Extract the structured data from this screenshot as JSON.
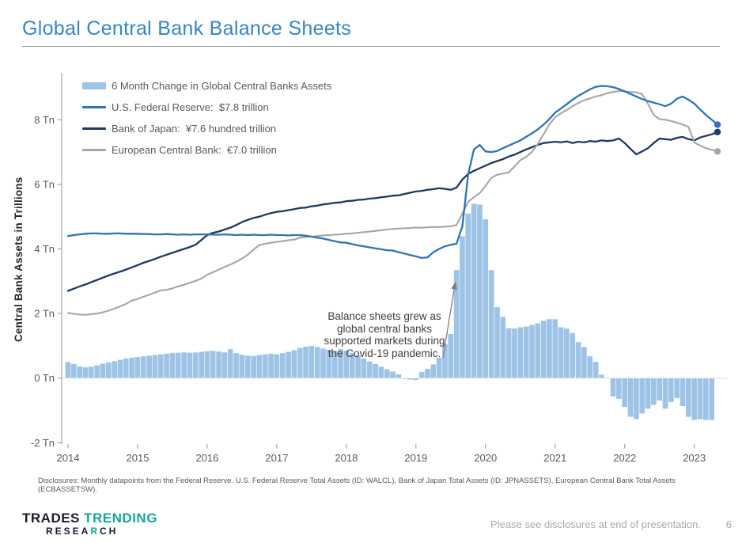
{
  "page": {
    "title": "Global Central Bank Balance Sheets",
    "footer_note": "Please see disclosures at end of presentation.",
    "page_number": "6",
    "disclosure": "Disclosures: Monthly datapoints from the Federal Reserve.  U.S. Federal Reserve Total Assets (ID: WALCL), Bank of Japan Total Assets (ID: JPNASSETS), European Central Bank Total Assets (ECBASSETSW)."
  },
  "logo": {
    "word1": "TRADES",
    "word2": "TRENDING",
    "line2_pre": "RESEA",
    "line2_accent": "R",
    "line2_post": "CH",
    "teal": "#14A79A",
    "dark": "#191C30"
  },
  "legend": [
    {
      "label": "6 Month Change in Global Central Banks Assets",
      "color": "#9DC3E6",
      "type": "bar"
    },
    {
      "label": "U.S. Federal Reserve:  $7.8 trillion",
      "color": "#2E74B5",
      "type": "line"
    },
    {
      "label": "Bank of Japan:  ¥7.6 hundred trillion",
      "color": "#1F3864",
      "type": "line"
    },
    {
      "label": "European Central Bank:  €7.0 trillion",
      "color": "#A6A6A6",
      "type": "line"
    }
  ],
  "annotation": {
    "lines": [
      "Balance sheets grew as",
      "global central banks",
      "supported markets during",
      "the Covid-19 pandemic."
    ]
  },
  "chart_data": {
    "type": "combo (monthly bars + 3 lines)",
    "ylabel": "Central Bank Assets in Trillions",
    "x_start_year": 2014,
    "points_per_year": 12,
    "x_tick_labels": [
      "2014",
      "2015",
      "2016",
      "2017",
      "2018",
      "2019",
      "2020",
      "2021",
      "2022",
      "2023"
    ],
    "y_ticks": [
      {
        "value": 8,
        "label": "8 Tn"
      },
      {
        "value": 6,
        "label": "6 Tn"
      },
      {
        "value": 4,
        "label": "4 Tn"
      },
      {
        "value": 2,
        "label": "2 Tn"
      },
      {
        "value": 0,
        "label": "0 Tn"
      },
      {
        "value": -2,
        "label": "-2 Tn"
      }
    ],
    "ylim": [
      -2.4,
      9.4
    ],
    "grid": "off",
    "legend_position": "top-left inside plot",
    "bars": {
      "name": "6 Month Change in Global Central Banks Assets",
      "color": "#9DC3E6",
      "values": [
        0.5,
        0.44,
        0.37,
        0.34,
        0.36,
        0.4,
        0.45,
        0.49,
        0.53,
        0.57,
        0.61,
        0.64,
        0.66,
        0.68,
        0.7,
        0.72,
        0.74,
        0.76,
        0.78,
        0.79,
        0.8,
        0.79,
        0.8,
        0.82,
        0.84,
        0.85,
        0.83,
        0.8,
        0.9,
        0.78,
        0.73,
        0.7,
        0.69,
        0.72,
        0.74,
        0.76,
        0.74,
        0.78,
        0.82,
        0.87,
        0.94,
        0.98,
        1.0,
        0.97,
        0.92,
        0.88,
        0.84,
        0.9,
        0.86,
        0.78,
        0.7,
        0.61,
        0.52,
        0.44,
        0.36,
        0.28,
        0.21,
        0.12,
        -0.03,
        -0.05,
        -0.06,
        0.19,
        0.29,
        0.43,
        0.64,
        1.05,
        1.37,
        3.35,
        4.4,
        5.1,
        5.4,
        5.38,
        4.92,
        3.35,
        2.2,
        1.9,
        1.55,
        1.54,
        1.58,
        1.6,
        1.65,
        1.7,
        1.78,
        1.83,
        1.83,
        1.58,
        1.54,
        1.4,
        1.12,
        0.97,
        0.68,
        0.51,
        0.11,
        0.02,
        -0.57,
        -0.65,
        -0.9,
        -1.2,
        -1.27,
        -1.1,
        -0.95,
        -0.83,
        -0.7,
        -0.95,
        -0.75,
        -0.62,
        -0.87,
        -1.2,
        -1.3,
        -1.28,
        -1.3,
        -1.3
      ]
    },
    "series": [
      {
        "name": "U.S. Federal Reserve",
        "end_label": "$7.8 trillion",
        "color": "#2E74B5",
        "width": 2.3,
        "values": [
          4.4,
          4.43,
          4.45,
          4.47,
          4.48,
          4.48,
          4.47,
          4.47,
          4.48,
          4.48,
          4.47,
          4.47,
          4.47,
          4.46,
          4.46,
          4.45,
          4.45,
          4.46,
          4.45,
          4.44,
          4.45,
          4.44,
          4.45,
          4.45,
          4.45,
          4.44,
          4.44,
          4.45,
          4.44,
          4.43,
          4.44,
          4.43,
          4.44,
          4.43,
          4.43,
          4.44,
          4.43,
          4.43,
          4.42,
          4.43,
          4.43,
          4.41,
          4.38,
          4.35,
          4.32,
          4.28,
          4.24,
          4.2,
          4.19,
          4.15,
          4.11,
          4.08,
          4.05,
          4.02,
          3.99,
          3.96,
          3.95,
          3.9,
          3.86,
          3.81,
          3.77,
          3.72,
          3.74,
          3.9,
          4.0,
          4.08,
          4.13,
          4.16,
          4.7,
          6.3,
          7.08,
          7.22,
          7.02,
          7.0,
          7.03,
          7.12,
          7.2,
          7.28,
          7.36,
          7.47,
          7.58,
          7.7,
          7.85,
          8.02,
          8.22,
          8.35,
          8.48,
          8.62,
          8.74,
          8.84,
          8.94,
          9.02,
          9.05,
          9.04,
          9.01,
          8.95,
          8.88,
          8.8,
          8.72,
          8.64,
          8.58,
          8.53,
          8.48,
          8.42,
          8.5,
          8.65,
          8.72,
          8.62,
          8.5,
          8.32,
          8.15,
          8.0,
          7.85
        ]
      },
      {
        "name": "Bank of Japan",
        "end_label": "¥7.6 hundred trillion",
        "color": "#1F3864",
        "width": 2.3,
        "values": [
          2.7,
          2.77,
          2.84,
          2.9,
          2.97,
          3.04,
          3.11,
          3.18,
          3.24,
          3.3,
          3.36,
          3.43,
          3.5,
          3.57,
          3.63,
          3.69,
          3.76,
          3.82,
          3.88,
          3.94,
          4.0,
          4.06,
          4.13,
          4.28,
          4.43,
          4.5,
          4.54,
          4.6,
          4.66,
          4.74,
          4.83,
          4.9,
          4.96,
          5.0,
          5.06,
          5.11,
          5.15,
          5.17,
          5.2,
          5.23,
          5.27,
          5.28,
          5.32,
          5.34,
          5.38,
          5.4,
          5.43,
          5.44,
          5.48,
          5.49,
          5.52,
          5.53,
          5.56,
          5.57,
          5.6,
          5.62,
          5.65,
          5.66,
          5.7,
          5.74,
          5.78,
          5.8,
          5.83,
          5.85,
          5.88,
          5.86,
          5.83,
          5.9,
          6.15,
          6.32,
          6.42,
          6.5,
          6.58,
          6.66,
          6.72,
          6.78,
          6.86,
          6.92,
          7.0,
          7.08,
          7.15,
          7.22,
          7.28,
          7.3,
          7.32,
          7.3,
          7.33,
          7.28,
          7.32,
          7.3,
          7.34,
          7.32,
          7.36,
          7.34,
          7.36,
          7.42,
          7.28,
          7.1,
          6.93,
          7.02,
          7.12,
          7.28,
          7.42,
          7.4,
          7.38,
          7.44,
          7.47,
          7.4,
          7.36,
          7.45,
          7.5,
          7.55,
          7.62
        ]
      },
      {
        "name": "European Central Bank",
        "end_label": "€7.0 trillion",
        "color": "#A6A6A6",
        "width": 2.1,
        "values": [
          2.02,
          1.99,
          1.97,
          1.96,
          1.98,
          2.0,
          2.04,
          2.09,
          2.15,
          2.22,
          2.3,
          2.4,
          2.45,
          2.52,
          2.58,
          2.65,
          2.72,
          2.73,
          2.78,
          2.84,
          2.89,
          2.95,
          3.01,
          3.08,
          3.2,
          3.28,
          3.36,
          3.44,
          3.52,
          3.6,
          3.7,
          3.82,
          3.98,
          4.12,
          4.16,
          4.19,
          4.22,
          4.24,
          4.27,
          4.29,
          4.35,
          4.37,
          4.38,
          4.4,
          4.42,
          4.43,
          4.44,
          4.45,
          4.47,
          4.48,
          4.5,
          4.52,
          4.54,
          4.56,
          4.58,
          4.6,
          4.62,
          4.63,
          4.64,
          4.65,
          4.66,
          4.66,
          4.67,
          4.68,
          4.68,
          4.69,
          4.7,
          4.74,
          5.09,
          5.46,
          5.6,
          5.73,
          5.95,
          6.2,
          6.3,
          6.33,
          6.37,
          6.55,
          6.75,
          6.85,
          7.0,
          7.25,
          7.55,
          7.85,
          8.08,
          8.2,
          8.3,
          8.42,
          8.52,
          8.6,
          8.66,
          8.72,
          8.76,
          8.82,
          8.86,
          8.89,
          8.88,
          8.86,
          8.85,
          8.8,
          8.5,
          8.15,
          8.02,
          8.0,
          7.96,
          7.91,
          7.85,
          7.78,
          7.3,
          7.2,
          7.12,
          7.07,
          7.02
        ]
      }
    ]
  },
  "colors": {
    "title_blue": "#3585C5",
    "axis_text": "#595959",
    "axis_line": "#a6a6a6",
    "zero_line": "#d9d9d9",
    "annotation_text": "#3f3f3f",
    "arrow": "#7f7f7f",
    "footer_gray": "#a9a9a9"
  }
}
